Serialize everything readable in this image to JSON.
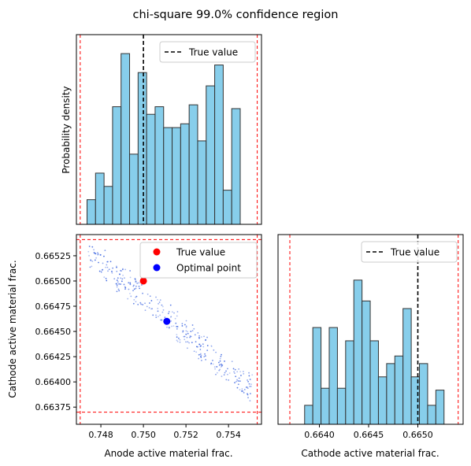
{
  "figure": {
    "title": "chi-square 99.0% confidence region"
  },
  "colors": {
    "hist_fill": "#87CEEB",
    "hist_edge": "#333333",
    "true_value": "#ff0000",
    "optimal": "#0000ff",
    "scatter": "#4169e1",
    "bound": "#ff0000"
  },
  "chart_data": [
    {
      "id": "top-left",
      "type": "bar",
      "ylabel": "Probability density",
      "xlim": [
        0.74685,
        0.75555
      ],
      "ylim": [
        0,
        1.0
      ],
      "bins_start": 0.74735,
      "bin_width": 0.0004,
      "values": [
        0.13,
        0.27,
        0.2,
        0.62,
        0.9,
        0.37,
        0.8,
        0.58,
        0.62,
        0.51,
        0.51,
        0.53,
        0.63,
        0.44,
        0.73,
        0.84,
        0.18,
        0.61
      ],
      "true_value": 0.75,
      "bounds": [
        0.74703,
        0.75535
      ],
      "legend": [
        "True value"
      ],
      "legend_position": "upper right"
    },
    {
      "id": "bottom-left",
      "type": "scatter",
      "xlabel": "Anode active material frac.",
      "ylabel": "Cathode active material frac.",
      "xlim": [
        0.74685,
        0.75555
      ],
      "ylim": [
        0.66358,
        0.66546
      ],
      "xticks": [
        "0.748",
        "0.750",
        "0.752",
        "0.754"
      ],
      "xtick_values": [
        0.748,
        0.75,
        0.752,
        0.754
      ],
      "yticks": [
        "0.66375",
        "0.66400",
        "0.66425",
        "0.66450",
        "0.66475",
        "0.66500",
        "0.66525"
      ],
      "ytick_values": [
        0.66375,
        0.664,
        0.66425,
        0.6645,
        0.66475,
        0.665,
        0.66525
      ],
      "true_value": {
        "x": 0.75,
        "y": 0.665
      },
      "optimal_point": {
        "x": 0.7511,
        "y": 0.6646
      },
      "bounds_x": [
        0.74703,
        0.75535
      ],
      "bounds_y": [
        0.6637,
        0.66541
      ],
      "scatter_band": {
        "x_range": [
          0.7474,
          0.7552
        ],
        "y_at_min_x": 0.6653,
        "y_at_max_x": 0.6639,
        "count": 320
      },
      "legend": [
        "True value",
        "Optimal point"
      ],
      "legend_position": "upper right"
    },
    {
      "id": "bottom-right",
      "type": "bar",
      "xlabel": "Cathode active material frac.",
      "xlim": [
        0.66358,
        0.66546
      ],
      "ylim": [
        0,
        1.0
      ],
      "xticks": [
        "0.6640",
        "0.6645",
        "0.6650"
      ],
      "xtick_values": [
        0.664,
        0.6645,
        0.665
      ],
      "bins_start": 0.66385,
      "bin_width": 8.33e-05,
      "values": [
        0.1,
        0.51,
        0.19,
        0.51,
        0.19,
        0.44,
        0.76,
        0.65,
        0.44,
        0.25,
        0.32,
        0.36,
        0.61,
        0.25,
        0.32,
        0.1,
        0.18
      ],
      "true_value": 0.665,
      "bounds": [
        0.6637,
        0.66541
      ],
      "legend": [
        "True value"
      ],
      "legend_position": "upper right"
    }
  ]
}
